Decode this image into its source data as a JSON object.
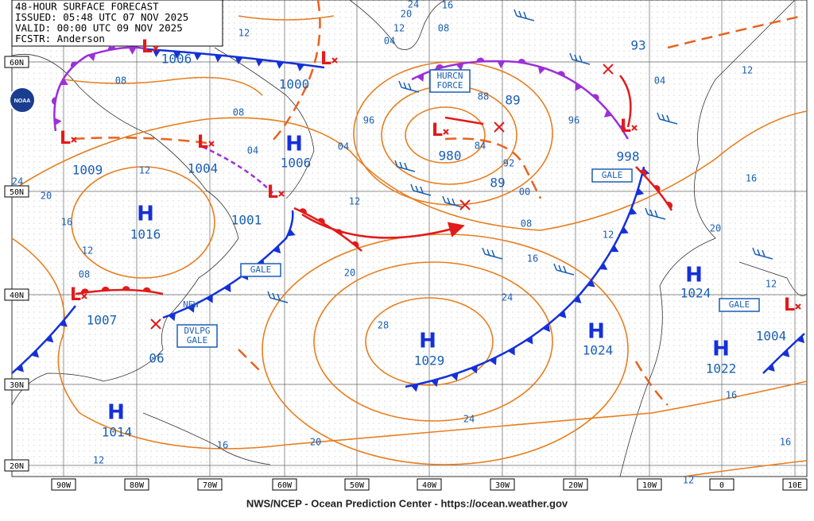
{
  "header": {
    "lines": [
      "48-HOUR SURFACE FORECAST",
      "ISSUED: 05:48 UTC 07 NOV 2025",
      "VALID: 00:00 UTC 09 NOV 2025",
      "FCSTR: Anderson"
    ]
  },
  "logo": "NOAA",
  "footer": "NWS/NCEP - Ocean Prediction Center - https://ocean.weather.gov",
  "latitude_labels": [
    "60N",
    "50N",
    "40N",
    "30N",
    "20N"
  ],
  "longitude_labels": [
    "90W",
    "80W",
    "70W",
    "60W",
    "50W",
    "40W",
    "30W",
    "20W",
    "10W",
    "0",
    "10E"
  ],
  "pressure_centers": [
    {
      "symbol": "L",
      "value": "1006"
    },
    {
      "symbol": "L",
      "value": "1000"
    },
    {
      "symbol": "L",
      "value": "980"
    },
    {
      "symbol": "L",
      "value": "1009"
    },
    {
      "symbol": "L",
      "value": "1004"
    },
    {
      "symbol": "H",
      "value": "1006"
    },
    {
      "symbol": "L",
      "value": "1001"
    },
    {
      "symbol": "H",
      "value": "1016"
    },
    {
      "symbol": "L",
      "value": "1007"
    },
    {
      "symbol": "H",
      "value": "1029"
    },
    {
      "symbol": "H",
      "value": "1024"
    },
    {
      "symbol": "H",
      "value": "1024"
    },
    {
      "symbol": "H",
      "value": "1022"
    },
    {
      "symbol": "H",
      "value": "1014"
    },
    {
      "symbol": "L",
      "value": "998"
    },
    {
      "symbol": "L",
      "value": "1004"
    }
  ],
  "center_values": [
    "93",
    "89",
    "89",
    "06"
  ],
  "isobar_labels": [
    "12",
    "08",
    "08",
    "04",
    "04",
    "12",
    "24",
    "20",
    "16",
    "12",
    "08",
    "12",
    "20",
    "96",
    "88",
    "84",
    "92",
    "00",
    "08",
    "16",
    "12",
    "24",
    "28",
    "24",
    "20",
    "16",
    "12",
    "20",
    "16",
    "12",
    "04",
    "96",
    "08",
    "12",
    "04",
    "20",
    "24",
    "16",
    "16",
    "16",
    "12",
    "12"
  ],
  "boxed_labels": [
    {
      "lines": [
        "HURCN",
        "FORCE"
      ]
    },
    {
      "lines": [
        "GALE"
      ]
    },
    {
      "lines": [
        "GALE"
      ]
    },
    {
      "lines": [
        "GALE"
      ]
    },
    {
      "lines": [
        "DVLPG",
        "GALE"
      ]
    }
  ],
  "annotations": [
    "NEW"
  ]
}
